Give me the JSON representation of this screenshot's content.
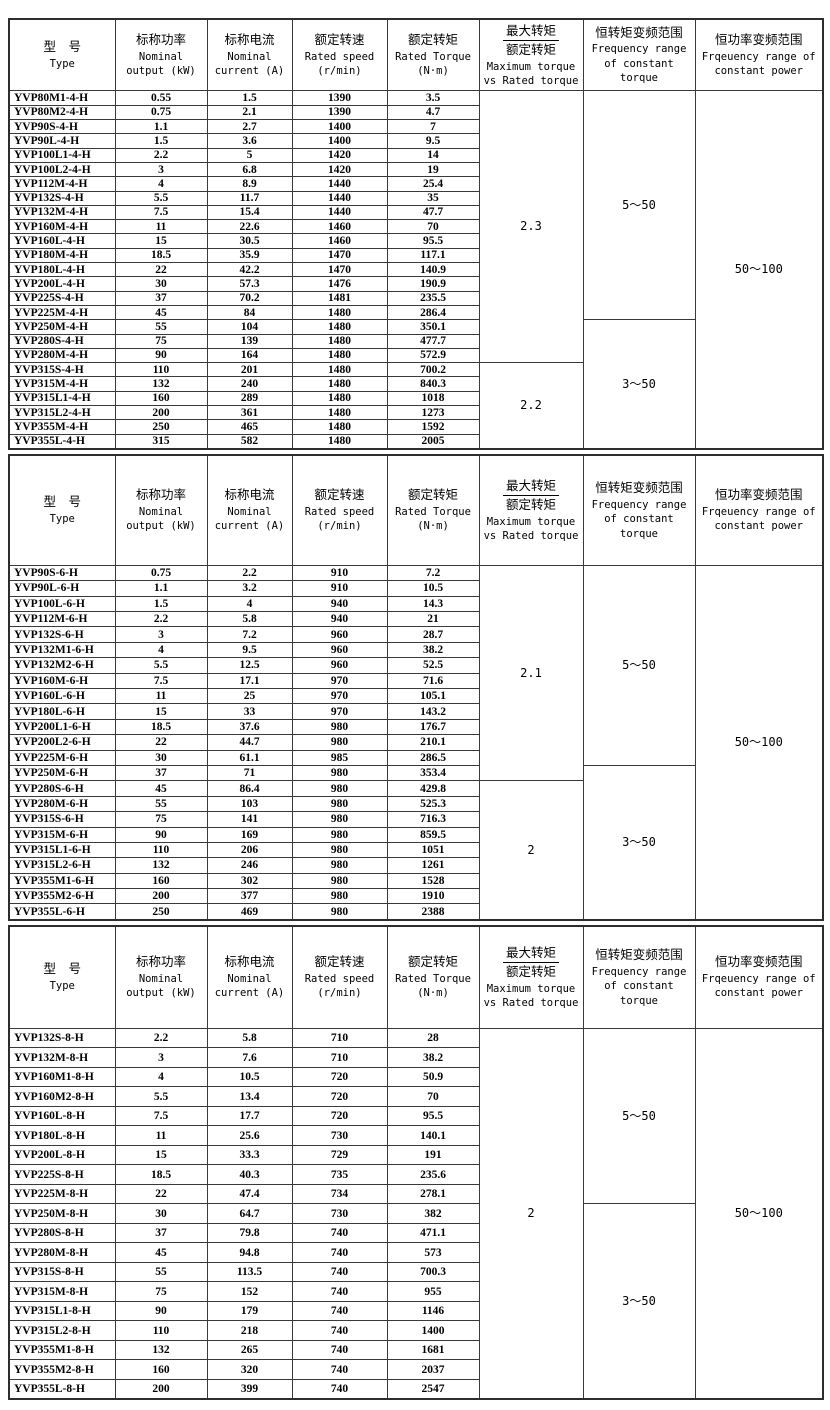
{
  "page": {
    "background": "#ffffff",
    "border_color": "#2e2e2e"
  },
  "tables": [
    {
      "id": "4-pole",
      "columns": {
        "type": {
          "cn": "型　号",
          "en": "Type"
        },
        "power": {
          "cn": "标称功率",
          "en": "Nominal output (kW)"
        },
        "current": {
          "cn": "标称电流",
          "en": "Nominal current (A)"
        },
        "speed": {
          "cn": "额定转速",
          "en": "Rated speed (r/min)"
        },
        "torque": {
          "cn": "额定转矩",
          "en": "Rated Torque (N·m)"
        },
        "ratio": {
          "cn_top": "最大转矩",
          "cn_bottom": "额定转矩",
          "en": "Maximum torque vs Rated torque"
        },
        "ct_range": {
          "cn": "恒转矩变频范围",
          "en": "Frequency range of constant torque"
        },
        "cp_range": {
          "cn": "恒功率变频范围",
          "en": "Frqeuency range of constant power"
        }
      },
      "rows": [
        [
          "YVP80M1-4-H",
          "0.55",
          "1.5",
          "1390",
          "3.5"
        ],
        [
          "YVP80M2-4-H",
          "0.75",
          "2.1",
          "1390",
          "4.7"
        ],
        [
          "YVP90S-4-H",
          "1.1",
          "2.7",
          "1400",
          "7"
        ],
        [
          "YVP90L-4-H",
          "1.5",
          "3.6",
          "1400",
          "9.5"
        ],
        [
          "YVP100L1-4-H",
          "2.2",
          "5",
          "1420",
          "14"
        ],
        [
          "YVP100L2-4-H",
          "3",
          "6.8",
          "1420",
          "19"
        ],
        [
          "YVP112M-4-H",
          "4",
          "8.9",
          "1440",
          "25.4"
        ],
        [
          "YVP132S-4-H",
          "5.5",
          "11.7",
          "1440",
          "35"
        ],
        [
          "YVP132M-4-H",
          "7.5",
          "15.4",
          "1440",
          "47.7"
        ],
        [
          "YVP160M-4-H",
          "11",
          "22.6",
          "1460",
          "70"
        ],
        [
          "YVP160L-4-H",
          "15",
          "30.5",
          "1460",
          "95.5"
        ],
        [
          "YVP180M-4-H",
          "18.5",
          "35.9",
          "1470",
          "117.1"
        ],
        [
          "YVP180L-4-H",
          "22",
          "42.2",
          "1470",
          "140.9"
        ],
        [
          "YVP200L-4-H",
          "30",
          "57.3",
          "1476",
          "190.9"
        ],
        [
          "YVP225S-4-H",
          "37",
          "70.2",
          "1481",
          "235.5"
        ],
        [
          "YVP225M-4-H",
          "45",
          "84",
          "1480",
          "286.4"
        ],
        [
          "YVP250M-4-H",
          "55",
          "104",
          "1480",
          "350.1"
        ],
        [
          "YVP280S-4-H",
          "75",
          "139",
          "1480",
          "477.7"
        ],
        [
          "YVP280M-4-H",
          "90",
          "164",
          "1480",
          "572.9"
        ],
        [
          "YVP315S-4-H",
          "110",
          "201",
          "1480",
          "700.2"
        ],
        [
          "YVP315M-4-H",
          "132",
          "240",
          "1480",
          "840.3"
        ],
        [
          "YVP315L1-4-H",
          "160",
          "289",
          "1480",
          "1018"
        ],
        [
          "YVP315L2-4-H",
          "200",
          "361",
          "1480",
          "1273"
        ],
        [
          "YVP355M-4-H",
          "250",
          "465",
          "1480",
          "1592"
        ],
        [
          "YVP355L-4-H",
          "315",
          "582",
          "1480",
          "2005"
        ]
      ],
      "ratio_groups": [
        {
          "value": "2.3",
          "span": 19
        },
        {
          "value": "2.2",
          "span": 6
        }
      ],
      "ct_groups": [
        {
          "value": "5～50",
          "span": 16
        },
        {
          "value": "3～50",
          "span": 9
        }
      ],
      "cp_groups": [
        {
          "value": "50～100",
          "span": 25
        }
      ]
    },
    {
      "id": "6-pole",
      "columns": {
        "type": {
          "cn": "型　号",
          "en": "Type"
        },
        "power": {
          "cn": "标称功率",
          "en": "Nominal output (kW)"
        },
        "current": {
          "cn": "标称电流",
          "en": "Nominal current (A)"
        },
        "speed": {
          "cn": "额定转速",
          "en": "Rated speed (r/min)"
        },
        "torque": {
          "cn": "额定转矩",
          "en": "Rated Torque (N·m)"
        },
        "ratio": {
          "cn_top": "最大转矩",
          "cn_bottom": "额定转矩",
          "en": "Maximum torque vs Rated torque"
        },
        "ct_range": {
          "cn": "恒转矩变频范围",
          "en": "Frequency range of constant torque"
        },
        "cp_range": {
          "cn": "恒功率变频范围",
          "en": "Frqeuency range of constant power"
        }
      },
      "rows": [
        [
          "YVP90S-6-H",
          "0.75",
          "2.2",
          "910",
          "7.2"
        ],
        [
          "YVP90L-6-H",
          "1.1",
          "3.2",
          "910",
          "10.5"
        ],
        [
          "YVP100L-6-H",
          "1.5",
          "4",
          "940",
          "14.3"
        ],
        [
          "YVP112M-6-H",
          "2.2",
          "5.8",
          "940",
          "21"
        ],
        [
          "YVP132S-6-H",
          "3",
          "7.2",
          "960",
          "28.7"
        ],
        [
          "YVP132M1-6-H",
          "4",
          "9.5",
          "960",
          "38.2"
        ],
        [
          "YVP132M2-6-H",
          "5.5",
          "12.5",
          "960",
          "52.5"
        ],
        [
          "YVP160M-6-H",
          "7.5",
          "17.1",
          "970",
          "71.6"
        ],
        [
          "YVP160L-6-H",
          "11",
          "25",
          "970",
          "105.1"
        ],
        [
          "YVP180L-6-H",
          "15",
          "33",
          "970",
          "143.2"
        ],
        [
          "YVP200L1-6-H",
          "18.5",
          "37.6",
          "980",
          "176.7"
        ],
        [
          "YVP200L2-6-H",
          "22",
          "44.7",
          "980",
          "210.1"
        ],
        [
          "YVP225M-6-H",
          "30",
          "61.1",
          "985",
          "286.5"
        ],
        [
          "YVP250M-6-H",
          "37",
          "71",
          "980",
          "353.4"
        ],
        [
          "YVP280S-6-H",
          "45",
          "86.4",
          "980",
          "429.8"
        ],
        [
          "YVP280M-6-H",
          "55",
          "103",
          "980",
          "525.3"
        ],
        [
          "YVP315S-6-H",
          "75",
          "141",
          "980",
          "716.3"
        ],
        [
          "YVP315M-6-H",
          "90",
          "169",
          "980",
          "859.5"
        ],
        [
          "YVP315L1-6-H",
          "110",
          "206",
          "980",
          "1051"
        ],
        [
          "YVP315L2-6-H",
          "132",
          "246",
          "980",
          "1261"
        ],
        [
          "YVP355M1-6-H",
          "160",
          "302",
          "980",
          "1528"
        ],
        [
          "YVP355M2-6-H",
          "200",
          "377",
          "980",
          "1910"
        ],
        [
          "YVP355L-6-H",
          "250",
          "469",
          "980",
          "2388"
        ]
      ],
      "ratio_groups": [
        {
          "value": "2.1",
          "span": 14
        },
        {
          "value": "2",
          "span": 9
        }
      ],
      "ct_groups": [
        {
          "value": "5～50",
          "span": 13
        },
        {
          "value": "3～50",
          "span": 10
        }
      ],
      "cp_groups": [
        {
          "value": "50～100",
          "span": 23
        }
      ]
    },
    {
      "id": "8-pole",
      "columns": {
        "type": {
          "cn": "型　号",
          "en": "Type"
        },
        "power": {
          "cn": "标称功率",
          "en": "Nominal output (kW)"
        },
        "current": {
          "cn": "标称电流",
          "en": "Nominal current (A)"
        },
        "speed": {
          "cn": "额定转速",
          "en": "Rated speed (r/min)"
        },
        "torque": {
          "cn": "额定转矩",
          "en": "Rated Torque (N·m)"
        },
        "ratio": {
          "cn_top": "最大转矩",
          "cn_bottom": "额定转矩",
          "en": "Maximum torque vs Rated torque"
        },
        "ct_range": {
          "cn": "恒转矩变频范围",
          "en": "Frequency range of constant torque"
        },
        "cp_range": {
          "cn": "恒功率变频范围",
          "en": "Frqeuency range of constant power"
        }
      },
      "rows": [
        [
          "YVP132S-8-H",
          "2.2",
          "5.8",
          "710",
          "28"
        ],
        [
          "YVP132M-8-H",
          "3",
          "7.6",
          "710",
          "38.2"
        ],
        [
          "YVP160M1-8-H",
          "4",
          "10.5",
          "720",
          "50.9"
        ],
        [
          "YVP160M2-8-H",
          "5.5",
          "13.4",
          "720",
          "70"
        ],
        [
          "YVP160L-8-H",
          "7.5",
          "17.7",
          "720",
          "95.5"
        ],
        [
          "YVP180L-8-H",
          "11",
          "25.6",
          "730",
          "140.1"
        ],
        [
          "YVP200L-8-H",
          "15",
          "33.3",
          "729",
          "191"
        ],
        [
          "YVP225S-8-H",
          "18.5",
          "40.3",
          "735",
          "235.6"
        ],
        [
          "YVP225M-8-H",
          "22",
          "47.4",
          "734",
          "278.1"
        ],
        [
          "YVP250M-8-H",
          "30",
          "64.7",
          "730",
          "382"
        ],
        [
          "YVP280S-8-H",
          "37",
          "79.8",
          "740",
          "471.1"
        ],
        [
          "YVP280M-8-H",
          "45",
          "94.8",
          "740",
          "573"
        ],
        [
          "YVP315S-8-H",
          "55",
          "113.5",
          "740",
          "700.3"
        ],
        [
          "YVP315M-8-H",
          "75",
          "152",
          "740",
          "955"
        ],
        [
          "YVP315L1-8-H",
          "90",
          "179",
          "740",
          "1146"
        ],
        [
          "YVP315L2-8-H",
          "110",
          "218",
          "740",
          "1400"
        ],
        [
          "YVP355M1-8-H",
          "132",
          "265",
          "740",
          "1681"
        ],
        [
          "YVP355M2-8-H",
          "160",
          "320",
          "740",
          "2037"
        ],
        [
          "YVP355L-8-H",
          "200",
          "399",
          "740",
          "2547"
        ]
      ],
      "ratio_groups": [
        {
          "value": "2",
          "span": 19
        }
      ],
      "ct_groups": [
        {
          "value": "5～50",
          "span": 9
        },
        {
          "value": "3～50",
          "span": 10
        }
      ],
      "cp_groups": [
        {
          "value": "50～100",
          "span": 19
        }
      ]
    }
  ]
}
